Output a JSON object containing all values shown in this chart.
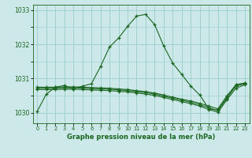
{
  "title": "Graphe pression niveau de la mer (hPa)",
  "background_color": "#cce8e8",
  "grid_color": "#99cccc",
  "line_color": "#1a6620",
  "x_labels": [
    "0",
    "1",
    "2",
    "3",
    "4",
    "5",
    "6",
    "7",
    "8",
    "9",
    "10",
    "11",
    "12",
    "13",
    "14",
    "15",
    "16",
    "17",
    "18",
    "19",
    "20",
    "21",
    "22",
    "23"
  ],
  "ylim": [
    1029.7,
    1033.15
  ],
  "yticks": [
    1030,
    1031,
    1032,
    1033
  ],
  "series1": [
    1030.05,
    1030.55,
    1030.75,
    1030.8,
    1030.7,
    1030.78,
    1030.85,
    1031.35,
    1031.92,
    1032.18,
    1032.52,
    1032.82,
    1032.87,
    1032.57,
    1031.95,
    1031.45,
    1031.12,
    1030.78,
    1030.52,
    1030.12,
    1030.08,
    1030.42,
    1030.82,
    1030.87
  ],
  "series2": [
    1030.75,
    1030.75,
    1030.75,
    1030.76,
    1030.76,
    1030.75,
    1030.74,
    1030.73,
    1030.72,
    1030.7,
    1030.68,
    1030.65,
    1030.62,
    1030.58,
    1030.52,
    1030.46,
    1030.4,
    1030.35,
    1030.28,
    1030.2,
    1030.12,
    1030.5,
    1030.82,
    1030.87
  ],
  "series3": [
    1030.72,
    1030.72,
    1030.72,
    1030.73,
    1030.73,
    1030.72,
    1030.71,
    1030.7,
    1030.69,
    1030.67,
    1030.65,
    1030.62,
    1030.59,
    1030.55,
    1030.49,
    1030.43,
    1030.37,
    1030.31,
    1030.24,
    1030.15,
    1030.07,
    1030.45,
    1030.78,
    1030.85
  ],
  "series4": [
    1030.68,
    1030.68,
    1030.68,
    1030.69,
    1030.69,
    1030.68,
    1030.67,
    1030.66,
    1030.65,
    1030.63,
    1030.61,
    1030.58,
    1030.55,
    1030.51,
    1030.45,
    1030.39,
    1030.33,
    1030.27,
    1030.2,
    1030.1,
    1030.02,
    1030.38,
    1030.72,
    1030.82
  ]
}
